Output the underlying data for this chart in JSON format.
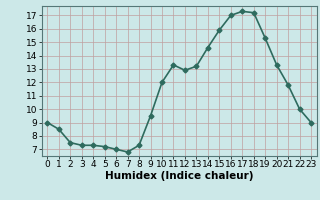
{
  "x": [
    0,
    1,
    2,
    3,
    4,
    5,
    6,
    7,
    8,
    9,
    10,
    11,
    12,
    13,
    14,
    15,
    16,
    17,
    18,
    19,
    20,
    21,
    22,
    23
  ],
  "y": [
    9.0,
    8.5,
    7.5,
    7.3,
    7.3,
    7.2,
    7.0,
    6.8,
    7.3,
    9.5,
    12.0,
    13.3,
    12.9,
    13.2,
    14.6,
    15.9,
    17.0,
    17.3,
    17.2,
    15.3,
    13.3,
    11.8,
    10.0,
    9.0
  ],
  "line_color": "#2e6b5e",
  "marker": "D",
  "marker_size": 2.5,
  "linewidth": 1.2,
  "bg_color": "#cce8e8",
  "grid_color": "#c0a0a0",
  "xlabel": "Humidex (Indice chaleur)",
  "xlim": [
    -0.5,
    23.5
  ],
  "ylim": [
    6.5,
    17.7
  ],
  "yticks": [
    7,
    8,
    9,
    10,
    11,
    12,
    13,
    14,
    15,
    16,
    17
  ],
  "xticks": [
    0,
    1,
    2,
    3,
    4,
    5,
    6,
    7,
    8,
    9,
    10,
    11,
    12,
    13,
    14,
    15,
    16,
    17,
    18,
    19,
    20,
    21,
    22,
    23
  ],
  "tick_fontsize": 6.5,
  "xlabel_fontsize": 7.5
}
